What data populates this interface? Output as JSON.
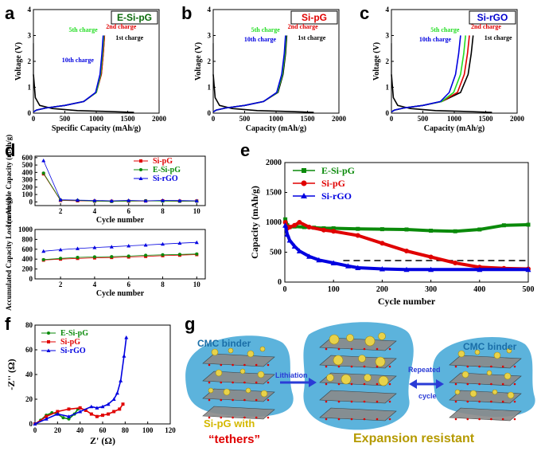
{
  "panels": {
    "a": {
      "label": "a",
      "box_label": "E-Si-pG",
      "box_color": "#0a6a0a",
      "xlabel": "Specific Capacity (mAh/g)",
      "ylabel": "Voltage (V)",
      "xticks": [
        0,
        500,
        1000,
        1500,
        2000
      ],
      "yticks": [
        0,
        1,
        2,
        3,
        4
      ],
      "xlim": [
        0,
        2000
      ],
      "ylim": [
        0,
        4
      ],
      "annotations": {
        "c5": "5th charge",
        "c2": "2nd charge",
        "c1": "1st charge",
        "c10": "10th charge"
      },
      "charge_end": {
        "1st": 1130,
        "2nd": 1130,
        "5th": 1120,
        "10th": 1110
      }
    },
    "b": {
      "label": "b",
      "box_label": "Si-pG",
      "box_color": "#e00000",
      "xlabel": "Capacity (mAh/g)",
      "ylabel": "Voltage (V)",
      "xticks": [
        0,
        500,
        1000,
        1500,
        2000
      ],
      "yticks": [
        0,
        1,
        2,
        3,
        4
      ],
      "xlim": [
        0,
        2000
      ],
      "ylim": [
        0,
        4
      ],
      "annotations": {
        "c5": "5th charge",
        "c2": "2nd charge",
        "c1": "1st charge",
        "c10": "10th charge"
      },
      "charge_end": {
        "1st": 1170,
        "2nd": 1160,
        "5th": 1160,
        "10th": 1150
      }
    },
    "c": {
      "label": "c",
      "box_label": "Si-rGO",
      "box_color": "#0000cc",
      "xlabel": "Capacity (mAh/g)",
      "ylabel": "Voltage (V)",
      "xticks": [
        0,
        500,
        1000,
        1500,
        2000
      ],
      "yticks": [
        0,
        1,
        2,
        3,
        4
      ],
      "xlim": [
        0,
        2000
      ],
      "ylim": [
        0,
        4
      ],
      "annotations": {
        "c5": "5th charge",
        "c2": "2nd charge",
        "c1": "1st charge",
        "c10": "10th charge"
      },
      "charge_end": {
        "1st": 1300,
        "2nd": 1240,
        "5th": 1180,
        "10th": 1100
      }
    },
    "d": {
      "label": "d",
      "top": {
        "ylabel": "Irreversible Capacity (mAh/g)",
        "xlabel": "Cycle number",
        "xticks": [
          2,
          4,
          6,
          8,
          10
        ],
        "yticks": [
          0,
          100,
          200,
          300,
          400,
          500,
          600
        ],
        "ylim": [
          -50,
          620
        ]
      },
      "bottom": {
        "ylabel": "Accumulated Capacity Loss (mAh/g)",
        "xlabel": "Cycle number",
        "xticks": [
          2,
          4,
          6,
          8,
          10
        ],
        "yticks": [
          0,
          200,
          400,
          600,
          800,
          1000
        ],
        "ylim": [
          0,
          1000
        ]
      },
      "legend": [
        "Si-pG",
        "E-Si-pG",
        "Si-rGO"
      ]
    },
    "e": {
      "label": "e",
      "xlabel": "Cycle number",
      "ylabel": "Capacity (mAh/g)",
      "xticks": [
        0,
        100,
        200,
        300,
        400,
        500
      ],
      "yticks": [
        0,
        500,
        1000,
        1500,
        2000
      ],
      "xlim": [
        0,
        500
      ],
      "ylim": [
        0,
        2000
      ],
      "legend": [
        "E-Si-pG",
        "Si-pG",
        "Si-rGO"
      ],
      "reference_line": 360
    },
    "f": {
      "label": "f",
      "xlabel": "Z' (Ω)",
      "ylabel": "-Z'' (Ω)",
      "xticks": [
        0,
        20,
        40,
        60,
        80,
        100,
        120
      ],
      "yticks": [
        0,
        20,
        40,
        60,
        80
      ],
      "xlim": [
        0,
        120
      ],
      "ylim": [
        0,
        80
      ],
      "legend": [
        "E-Si-pG",
        "Si-pG",
        "Si-rGO"
      ]
    },
    "g": {
      "label": "g",
      "binder_left": "CMC binder",
      "binder_right": "CMC binder",
      "arrow1": "Lithiation",
      "arrow2_line1": "Repeated",
      "arrow2_line2": "cycle",
      "caption_line1": "Si-pG with",
      "caption_line2": "“tethers”",
      "caption_right": "Expansion resistant"
    }
  },
  "colors": {
    "green": "#0a8a0a",
    "red": "#e00000",
    "blue": "#0000e0",
    "black": "#000000",
    "green_bright": "#22dd22"
  },
  "chart_data": [
    {
      "type": "line",
      "panel": "a",
      "xlabel": "Specific Capacity (mAh/g)",
      "ylabel": "Voltage (V)",
      "xlim": [
        0,
        2000
      ],
      "ylim": [
        0,
        4
      ],
      "series": [
        {
          "name": "1st charge",
          "x": [
            0,
            50,
            200,
            500,
            800,
            1000,
            1080,
            1110,
            1130
          ],
          "y": [
            0.05,
            0.12,
            0.2,
            0.3,
            0.45,
            0.8,
            1.5,
            2.3,
            3.0
          ]
        },
        {
          "name": "2nd charge",
          "x": [
            0,
            50,
            200,
            500,
            800,
            1000,
            1080,
            1110,
            1130
          ],
          "y": [
            0.05,
            0.12,
            0.2,
            0.3,
            0.45,
            0.8,
            1.5,
            2.3,
            3.0
          ]
        },
        {
          "name": "5th charge",
          "x": [
            0,
            50,
            200,
            500,
            800,
            1000,
            1070,
            1100,
            1120
          ],
          "y": [
            0.05,
            0.12,
            0.2,
            0.3,
            0.45,
            0.8,
            1.5,
            2.3,
            3.0
          ]
        },
        {
          "name": "10th charge",
          "x": [
            0,
            50,
            200,
            500,
            800,
            990,
            1060,
            1090,
            1110
          ],
          "y": [
            0.05,
            0.12,
            0.2,
            0.3,
            0.45,
            0.8,
            1.5,
            2.3,
            3.0
          ]
        }
      ]
    },
    {
      "type": "line",
      "panel": "b",
      "xlabel": "Capacity (mAh/g)",
      "ylabel": "Voltage (V)",
      "xlim": [
        0,
        2000
      ],
      "ylim": [
        0,
        4
      ],
      "series": [
        {
          "name": "1st charge",
          "x": [
            0,
            50,
            200,
            500,
            800,
            1030,
            1110,
            1150,
            1170
          ],
          "y": [
            0.05,
            0.12,
            0.2,
            0.3,
            0.45,
            0.8,
            1.5,
            2.3,
            3.0
          ]
        },
        {
          "name": "2nd charge",
          "x": [
            0,
            50,
            200,
            500,
            800,
            1020,
            1100,
            1140,
            1160
          ],
          "y": [
            0.05,
            0.12,
            0.2,
            0.3,
            0.45,
            0.8,
            1.5,
            2.3,
            3.0
          ]
        },
        {
          "name": "5th charge",
          "x": [
            0,
            50,
            200,
            500,
            800,
            1020,
            1100,
            1140,
            1160
          ],
          "y": [
            0.05,
            0.12,
            0.2,
            0.3,
            0.45,
            0.8,
            1.5,
            2.3,
            3.0
          ]
        },
        {
          "name": "10th charge",
          "x": [
            0,
            50,
            200,
            500,
            800,
            1010,
            1090,
            1130,
            1150
          ],
          "y": [
            0.05,
            0.12,
            0.2,
            0.3,
            0.45,
            0.8,
            1.5,
            2.3,
            3.0
          ]
        }
      ]
    },
    {
      "type": "line",
      "panel": "c",
      "xlabel": "Capacity (mAh/g)",
      "ylabel": "Voltage (V)",
      "xlim": [
        0,
        2000
      ],
      "ylim": [
        0,
        4
      ],
      "series": [
        {
          "name": "1st charge",
          "x": [
            0,
            50,
            200,
            500,
            800,
            1100,
            1220,
            1270,
            1300
          ],
          "y": [
            0.05,
            0.12,
            0.2,
            0.3,
            0.45,
            0.8,
            1.5,
            2.3,
            3.0
          ]
        },
        {
          "name": "2nd charge",
          "x": [
            0,
            50,
            200,
            500,
            800,
            1050,
            1160,
            1210,
            1240
          ],
          "y": [
            0.05,
            0.12,
            0.2,
            0.3,
            0.45,
            0.8,
            1.5,
            2.3,
            3.0
          ]
        },
        {
          "name": "5th charge",
          "x": [
            0,
            50,
            200,
            500,
            800,
            990,
            1100,
            1150,
            1180
          ],
          "y": [
            0.05,
            0.12,
            0.2,
            0.3,
            0.45,
            0.8,
            1.5,
            2.3,
            3.0
          ]
        },
        {
          "name": "10th charge",
          "x": [
            0,
            50,
            200,
            500,
            780,
            920,
            1020,
            1070,
            1100
          ],
          "y": [
            0.05,
            0.12,
            0.2,
            0.3,
            0.45,
            0.8,
            1.5,
            2.3,
            3.0
          ]
        }
      ]
    },
    {
      "type": "line",
      "panel": "d-top",
      "xlabel": "Cycle number",
      "ylabel": "Irreversible Capacity (mAh/g)",
      "categories": [
        1,
        2,
        3,
        4,
        5,
        6,
        7,
        8,
        9,
        10
      ],
      "series": [
        {
          "name": "Si-pG",
          "values": [
            380,
            20,
            15,
            10,
            8,
            10,
            12,
            15,
            10,
            12
          ]
        },
        {
          "name": "E-Si-pG",
          "values": [
            390,
            25,
            20,
            10,
            5,
            12,
            15,
            10,
            8,
            10
          ]
        },
        {
          "name": "Si-rGO",
          "values": [
            560,
            30,
            25,
            20,
            15,
            20,
            15,
            20,
            18,
            15
          ]
        }
      ]
    },
    {
      "type": "line",
      "panel": "d-bottom",
      "xlabel": "Cycle number",
      "ylabel": "Accumulated Capacity Loss (mAh/g)",
      "categories": [
        1,
        2,
        3,
        4,
        5,
        6,
        7,
        8,
        9,
        10
      ],
      "series": [
        {
          "name": "Si-pG",
          "values": [
            380,
            400,
            415,
            425,
            433,
            443,
            455,
            470,
            480,
            492
          ]
        },
        {
          "name": "E-Si-pG",
          "values": [
            390,
            415,
            435,
            445,
            450,
            462,
            477,
            487,
            495,
            505
          ]
        },
        {
          "name": "Si-rGO",
          "values": [
            560,
            590,
            615,
            635,
            650,
            670,
            685,
            705,
            723,
            738
          ]
        }
      ]
    },
    {
      "type": "scatter",
      "panel": "e",
      "xlabel": "Cycle number",
      "ylabel": "Capacity (mAh/g)",
      "xlim": [
        0,
        500
      ],
      "ylim": [
        0,
        2000
      ],
      "series": [
        {
          "name": "E-Si-pG",
          "x": [
            1,
            5,
            10,
            20,
            40,
            60,
            80,
            100,
            150,
            200,
            250,
            300,
            350,
            400,
            450,
            500
          ],
          "y": [
            1050,
            950,
            920,
            930,
            920,
            910,
            900,
            900,
            890,
            885,
            880,
            860,
            850,
            880,
            950,
            960
          ]
        },
        {
          "name": "Si-pG",
          "x": [
            1,
            5,
            10,
            20,
            30,
            50,
            80,
            100,
            150,
            200,
            250,
            300,
            350,
            400,
            450,
            500
          ],
          "y": [
            1000,
            900,
            920,
            950,
            1000,
            920,
            870,
            850,
            780,
            650,
            520,
            420,
            320,
            250,
            230,
            220
          ]
        },
        {
          "name": "Si-rGO",
          "x": [
            1,
            5,
            10,
            20,
            30,
            50,
            70,
            100,
            130,
            150,
            200,
            250,
            300,
            400,
            500
          ],
          "y": [
            950,
            800,
            700,
            600,
            520,
            430,
            370,
            320,
            270,
            240,
            220,
            210,
            210,
            210,
            210
          ]
        }
      ]
    },
    {
      "type": "line",
      "panel": "f",
      "xlabel": "Z' (Ω)",
      "ylabel": "-Z'' (Ω)",
      "xlim": [
        0,
        120
      ],
      "ylim": [
        0,
        80
      ],
      "series": [
        {
          "name": "E-Si-pG",
          "x": [
            0,
            5,
            10,
            15,
            20,
            25,
            30,
            35,
            38
          ],
          "y": [
            0,
            3,
            7,
            9,
            8,
            5,
            4,
            8,
            12
          ]
        },
        {
          "name": "Si-pG",
          "x": [
            0,
            10,
            20,
            30,
            40,
            45,
            50,
            55,
            60,
            65,
            70,
            75,
            78
          ],
          "y": [
            0,
            6,
            10,
            12,
            13,
            11,
            8,
            6,
            7,
            8,
            10,
            12,
            16
          ]
        },
        {
          "name": "Si-rGO",
          "x": [
            0,
            10,
            20,
            30,
            40,
            50,
            55,
            60,
            65,
            70,
            73,
            76,
            79,
            81
          ],
          "y": [
            0,
            4,
            8,
            6,
            10,
            14,
            13,
            14,
            16,
            20,
            25,
            35,
            55,
            70
          ]
        }
      ]
    }
  ]
}
